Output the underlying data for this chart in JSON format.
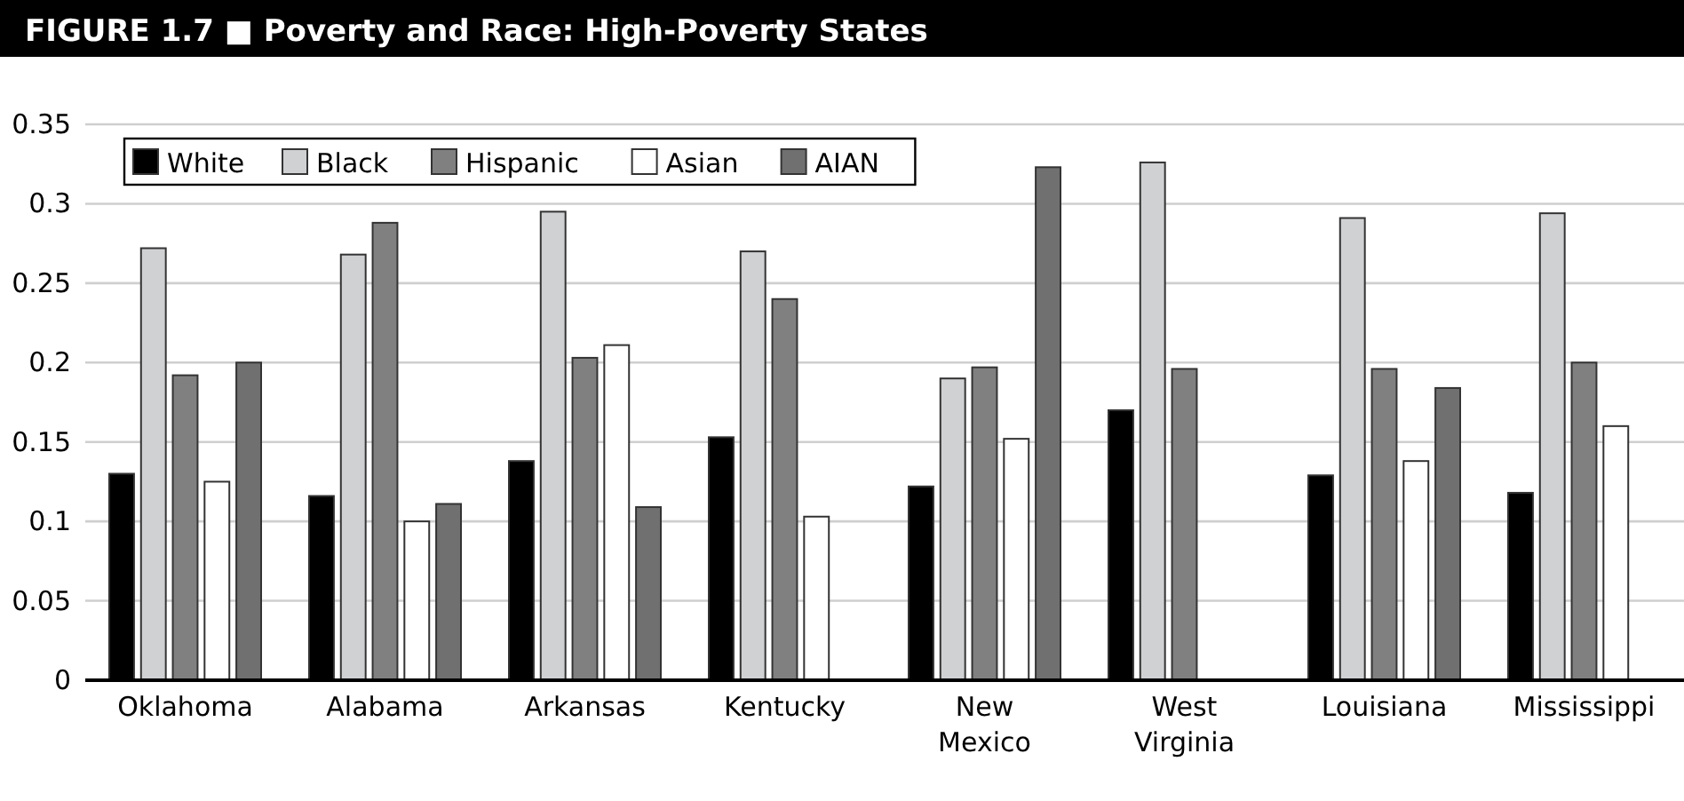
{
  "chart_data": {
    "type": "bar",
    "title": "FIGURE 1.7 ■ Poverty and Race: High-Poverty States",
    "categories": [
      "Oklahoma",
      "Alabama",
      "Arkansas",
      "Kentucky",
      "New Mexico",
      "West Virginia",
      "Louisiana",
      "Mississippi"
    ],
    "series": [
      {
        "name": "White",
        "color": "#000000",
        "values": [
          0.13,
          0.116,
          0.138,
          0.153,
          0.122,
          0.17,
          0.129,
          0.118
        ]
      },
      {
        "name": "Black",
        "color": "#d0d1d3",
        "values": [
          0.272,
          0.268,
          0.295,
          0.27,
          0.19,
          0.326,
          0.291,
          0.294
        ]
      },
      {
        "name": "Hispanic",
        "color": "#808080",
        "values": [
          0.192,
          0.288,
          0.203,
          0.24,
          0.197,
          0.196,
          0.196,
          0.2
        ]
      },
      {
        "name": "Asian",
        "color": "#ffffff",
        "values": [
          0.125,
          0.1,
          0.211,
          0.103,
          0.152,
          null,
          0.138,
          0.16
        ]
      },
      {
        "name": "AIAN",
        "color": "#707070",
        "values": [
          0.2,
          0.111,
          0.109,
          null,
          0.323,
          null,
          0.184,
          null
        ]
      }
    ],
    "ylim": [
      0,
      0.35
    ],
    "yticks": [
      0,
      0.05,
      0.1,
      0.15,
      0.2,
      0.25,
      0.3,
      0.35
    ],
    "grid": "y",
    "legend": "top left"
  }
}
